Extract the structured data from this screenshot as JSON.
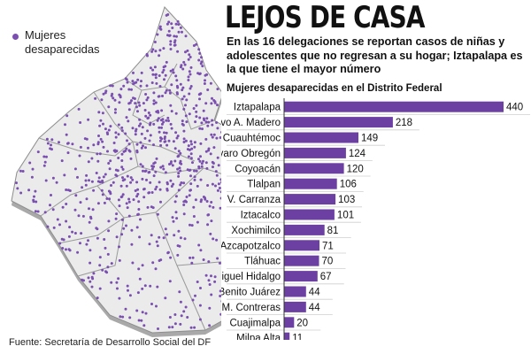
{
  "headline": "LEJOS DE CASA",
  "subheadline": "En las 16 delegaciones se reportan casos de niñas y adolescentes que no regresan a su hogar; Iztapalapa es la que tiene el mayor número",
  "legend": {
    "label": "Mujeres desaparecidas"
  },
  "source": "Fuente: Secretaría de Desarrollo Social del DF",
  "colors": {
    "bar": "#6c3fa3",
    "dot": "#7a4fb0",
    "map_top": "#ebebeb",
    "map_side": "#a9a9a9",
    "border": "#9a9a9a"
  },
  "chart_data": {
    "type": "bar",
    "orientation": "horizontal",
    "title": "Mujeres desaparecidas en el Distrito Federal",
    "categories": [
      "Iztapalapa",
      "Gustavo A. Madero",
      "Cuauhtémoc",
      "Álvaro Obregón",
      "Coyoacán",
      "Tlalpan",
      "V. Carranza",
      "Iztacalco",
      "Xochimilco",
      "Azcapotzalco",
      "Tláhuac",
      "Miguel Hidalgo",
      "Benito Juárez",
      "M. Contreras",
      "Cuajimalpa",
      "Milpa Alta"
    ],
    "values": [
      440,
      218,
      149,
      124,
      120,
      106,
      103,
      101,
      81,
      71,
      70,
      67,
      44,
      44,
      20,
      11
    ],
    "xlim": [
      0,
      440
    ],
    "data_labels": true,
    "grid": false
  }
}
